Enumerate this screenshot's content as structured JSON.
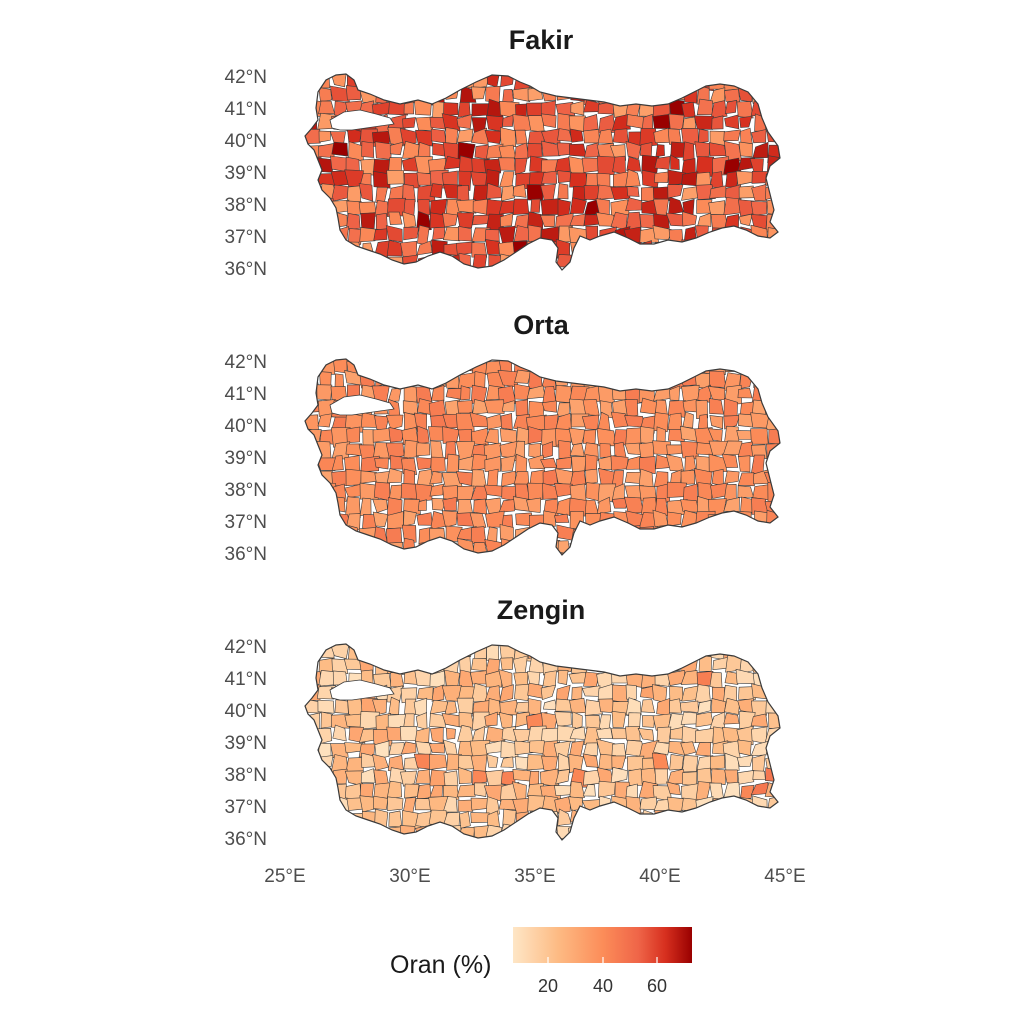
{
  "panels": [
    {
      "title": "Fakir",
      "intensity": 0.62,
      "spread": 0.3
    },
    {
      "title": "Orta",
      "intensity": 0.4,
      "spread": 0.1
    },
    {
      "title": "Zengin",
      "intensity": 0.16,
      "spread": 0.14
    }
  ],
  "axes": {
    "lat_labels": [
      "42°N",
      "41°N",
      "40°N",
      "39°N",
      "38°N",
      "37°N",
      "36°N"
    ],
    "lon_labels": [
      "25°E",
      "30°E",
      "35°E",
      "40°E",
      "45°E"
    ]
  },
  "legend": {
    "title": "Oran (%)",
    "ticks": [
      "20",
      "40",
      "60"
    ],
    "colors": [
      "#fee6c6",
      "#fdbb84",
      "#fc8d59",
      "#ef6548",
      "#d7301f",
      "#990000"
    ]
  }
}
